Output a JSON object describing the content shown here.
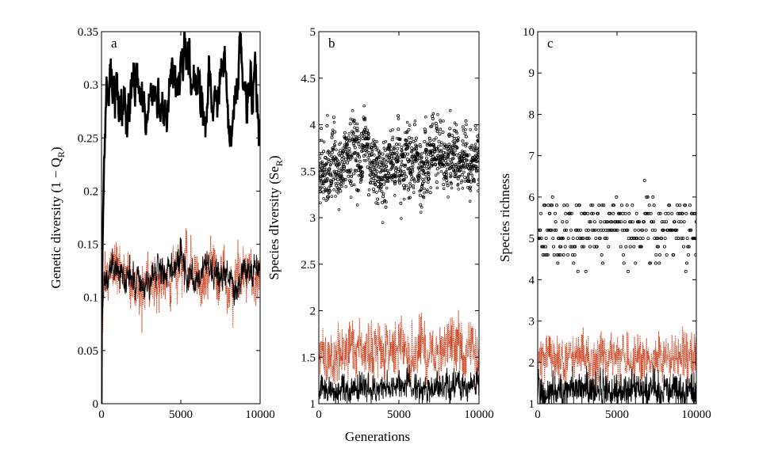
{
  "chart_data": [
    {
      "type": "line",
      "panel": "a",
      "ylabel": "Genetic diversity (1 − Q",
      "ylabel_sub": "R",
      "ylabel_close": ")",
      "xlim": [
        0,
        10000
      ],
      "ylim": [
        0,
        0.35
      ],
      "xticks": [
        0,
        5000,
        10000
      ],
      "xtick_labels": [
        "0",
        "5000",
        "10000"
      ],
      "yticks": [
        0,
        0.05,
        0.1,
        0.15,
        0.2,
        0.25,
        0.3,
        0.35
      ],
      "ytick_labels": [
        "0",
        "0.05",
        "0.1",
        "0.15",
        "0.2",
        "0.25",
        "0.3",
        "0.35"
      ],
      "series": [
        {
          "name": "black-top",
          "color": "#000000",
          "style": "thick",
          "base": 0.285,
          "amp": 0.025,
          "noise": 0.008,
          "rise": 0.22,
          "rise_gen": 300,
          "seed": 11
        },
        {
          "name": "red-lower",
          "color": "#d2401e",
          "style": "dotted",
          "base": 0.12,
          "amp": 0.012,
          "noise": 0.022,
          "rise": 0.13,
          "rise_gen": 150,
          "seed": 5
        },
        {
          "name": "black-lower",
          "color": "#000000",
          "style": "thin",
          "base": 0.122,
          "amp": 0.01,
          "noise": 0.012,
          "rise": 0.12,
          "rise_gen": 150,
          "seed": 7
        }
      ]
    },
    {
      "type": "scatter",
      "panel": "b",
      "ylabel": "Species dIversity (Se",
      "ylabel_sub": "R",
      "ylabel_close": ")",
      "xlim": [
        0,
        10000
      ],
      "ylim": [
        1,
        5
      ],
      "xticks": [
        0,
        5000,
        10000
      ],
      "xtick_labels": [
        "0",
        "5000",
        "10000"
      ],
      "yticks": [
        1,
        1.5,
        2,
        2.5,
        3,
        3.5,
        4,
        4.5,
        5
      ],
      "ytick_labels": [
        "1",
        "1.5",
        "2",
        "2.5",
        "3",
        "3.5",
        "4",
        "4.5",
        "5"
      ],
      "series": [
        {
          "name": "black-circles",
          "color": "#000000",
          "style": "circles",
          "base": 3.6,
          "amp": 0.12,
          "noise": 0.32,
          "seed": 3
        },
        {
          "name": "red-lower",
          "color": "#d2401e",
          "style": "dotted",
          "base": 1.55,
          "amp": 0.1,
          "noise": 0.28,
          "seed": 9
        },
        {
          "name": "black-lower",
          "color": "#000000",
          "style": "thin",
          "base": 1.15,
          "amp": 0.05,
          "noise": 0.14,
          "floor": 1,
          "seed": 13
        }
      ]
    },
    {
      "type": "scatter",
      "panel": "c",
      "ylabel": "Species richness",
      "xlim": [
        0,
        10000
      ],
      "ylim": [
        1,
        10
      ],
      "xticks": [
        0,
        5000,
        10000
      ],
      "xtick_labels": [
        "0",
        "5000",
        "10000"
      ],
      "yticks": [
        1,
        2,
        3,
        4,
        5,
        6,
        7,
        8,
        9,
        10
      ],
      "ytick_labels": [
        "1",
        "2",
        "3",
        "4",
        "5",
        "6",
        "7",
        "8",
        "9",
        "10"
      ],
      "series": [
        {
          "name": "black-circles",
          "color": "#000000",
          "style": "levels",
          "base": 5.2,
          "amp": 0.1,
          "noise": 0.75,
          "step": 0.2,
          "seed": 21
        },
        {
          "name": "red-lower",
          "color": "#d2401e",
          "style": "dotted",
          "base": 2.1,
          "amp": 0.1,
          "noise": 0.55,
          "floor": 1,
          "seed": 17
        },
        {
          "name": "black-lower",
          "color": "#000000",
          "style": "thin",
          "base": 1.3,
          "amp": 0.05,
          "noise": 0.45,
          "floor": 1,
          "seed": 19
        }
      ]
    }
  ],
  "shared_xlabel": "Generations"
}
